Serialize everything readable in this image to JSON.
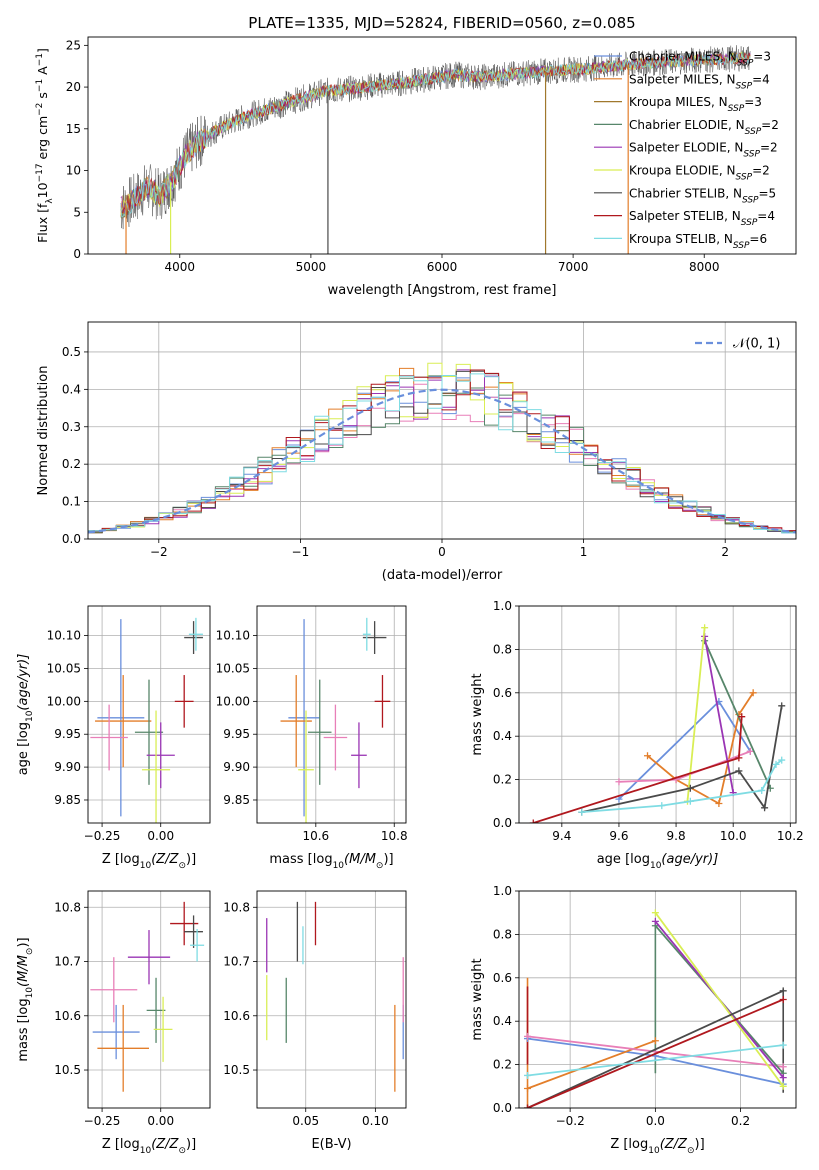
{
  "figure_title": "PLATE=1335, MJD=52824, FIBERID=0560, z=0.085",
  "colors": {
    "Chabrier MILES": "#6a8fdc",
    "Salpeter MILES": "#e37e2a",
    "Kroupa MILES": "#a0782d",
    "Chabrier ELODIE": "#57866a",
    "Salpeter ELODIE": "#9a35b4",
    "Kroupa ELODIE": "#d9ee55",
    "Chabrier STELIB": "#4a4a4a",
    "Salpeter STELIB": "#b0181e",
    "Kroupa STELIB": "#7fdce3",
    "pink": "#e87fb8",
    "normal": "#6a8fdc"
  },
  "chart_data": [
    {
      "id": "spectrum",
      "type": "line",
      "title": "PLATE=1335, MJD=52824, FIBERID=0560, z=0.085",
      "xlabel": "wavelength [Angstrom, rest frame]",
      "ylabel_main": "Flux [f",
      "ylabel_sub": "λ",
      "ylabel_rest": "10",
      "ylabel_exp1": "−17",
      "ylabel_unit": " erg cm",
      "ylabel_exp2": "−2",
      "ylabel_unit2": " s",
      "ylabel_exp3": "−1",
      "ylabel_unit3": " A",
      "ylabel_exp4": "−1",
      "ylabel_end": "]",
      "xlim": [
        3300,
        8700
      ],
      "ylim": [
        0,
        26
      ],
      "xticks": [
        4000,
        5000,
        6000,
        7000,
        8000
      ],
      "yticks": [
        0,
        5,
        10,
        15,
        20,
        25
      ],
      "legend_position": "right",
      "legend": [
        {
          "label": "Chabrier MILES, N",
          "sub": "SSP",
          "tail": "=3",
          "color": "#6a8fdc"
        },
        {
          "label": "Salpeter MILES, N",
          "sub": "SSP",
          "tail": "=4",
          "color": "#e37e2a"
        },
        {
          "label": "Kroupa MILES, N",
          "sub": "SSP",
          "tail": "=3",
          "color": "#a0782d"
        },
        {
          "label": "Chabrier ELODIE, N",
          "sub": "SSP",
          "tail": "=2",
          "color": "#57866a"
        },
        {
          "label": "Salpeter ELODIE, N",
          "sub": "SSP",
          "tail": "=2",
          "color": "#9a35b4"
        },
        {
          "label": "Kroupa ELODIE, N",
          "sub": "SSP",
          "tail": "=2",
          "color": "#d9ee55"
        },
        {
          "label": "Chabrier STELIB, N",
          "sub": "SSP",
          "tail": "=5",
          "color": "#4a4a4a"
        },
        {
          "label": "Salpeter STELIB, N",
          "sub": "SSP",
          "tail": "=4",
          "color": "#b0181e"
        },
        {
          "label": "Kroupa STELIB, N",
          "sub": "SSP",
          "tail": "=6",
          "color": "#7fdce3"
        }
      ],
      "trend_x": [
        3550,
        3650,
        3750,
        3850,
        3950,
        4050,
        4150,
        4300,
        4500,
        4700,
        4900,
        5100,
        5300,
        5500,
        5700,
        5900,
        6100,
        6300,
        6500,
        6700,
        6900,
        7100,
        7300,
        7500,
        7700,
        7900,
        8100,
        8300
      ],
      "trend_y": [
        5.5,
        6.5,
        8,
        7,
        9,
        12,
        13.5,
        15,
        16.5,
        17.5,
        18.5,
        19.5,
        19.8,
        20.2,
        20.5,
        21,
        21.5,
        21.2,
        21.5,
        21.8,
        22,
        22.2,
        22.5,
        22.8,
        23,
        23.2,
        23.3,
        23.5
      ],
      "data_range_x": [
        3550,
        8350
      ],
      "dips": [
        {
          "x": 3590,
          "y": 0.0,
          "color": "#e37e2a"
        },
        {
          "x": 3930,
          "y": 0.0,
          "color": "#d9ee55"
        },
        {
          "x": 5130,
          "y": 0.0,
          "color": "#4a4a4a"
        },
        {
          "x": 6790,
          "y": 0.0,
          "color": "#a0782d"
        },
        {
          "x": 7420,
          "y": 0.0,
          "color": "#e37e2a"
        }
      ]
    },
    {
      "id": "residuals",
      "type": "line",
      "xlabel": "(data-model)/error",
      "ylabel": "Normed distribution",
      "xlim": [
        -2.5,
        2.5
      ],
      "ylim": [
        0,
        0.58
      ],
      "xticks": [
        -2,
        -1,
        0,
        1,
        2
      ],
      "xticklabels": [
        "−2",
        "−1",
        "0",
        "1",
        "2"
      ],
      "yticks": [
        0.0,
        0.1,
        0.2,
        0.3,
        0.4,
        0.5
      ],
      "yticklabels": [
        "0.0",
        "0.1",
        "0.2",
        "0.3",
        "0.4",
        "0.5"
      ],
      "grid": true,
      "legend_position": "upper right",
      "legend_label": "𝒩(0, 1)",
      "normal_curve": {
        "mu": 0,
        "sigma": 1
      },
      "bin_width": 0.1
    },
    {
      "id": "age-vs-z",
      "type": "scatter",
      "xlabel": "Z [log",
      "ylabel": "age  [log",
      "xlim": [
        -0.31,
        0.21
      ],
      "ylim": [
        9.815,
        10.145
      ],
      "xticks": [
        -0.25,
        0.0
      ],
      "xticklabels": [
        "−0.25",
        "0.00"
      ],
      "yticks": [
        9.85,
        9.9,
        9.95,
        10.0,
        10.05,
        10.1
      ],
      "yticklabels": [
        "9.85",
        "9.90",
        "9.95",
        "10.00",
        "10.05",
        "10.10"
      ],
      "points": [
        {
          "x": -0.17,
          "y": 9.975,
          "xerr": 0.1,
          "yerr": 0.15,
          "color": "#6a8fdc"
        },
        {
          "x": -0.16,
          "y": 9.97,
          "xerr": 0.12,
          "yerr": 0.07,
          "color": "#e37e2a"
        },
        {
          "x": -0.22,
          "y": 9.945,
          "xerr": 0.08,
          "yerr": 0.05,
          "color": "#e87fb8"
        },
        {
          "x": -0.05,
          "y": 9.953,
          "xerr": 0.06,
          "yerr": 0.08,
          "color": "#57866a"
        },
        {
          "x": 0.0,
          "y": 9.918,
          "xerr": 0.06,
          "yerr": 0.05,
          "color": "#9a35b4"
        },
        {
          "x": -0.02,
          "y": 9.896,
          "xerr": 0.06,
          "yerr": 0.09,
          "color": "#d9ee55"
        },
        {
          "x": 0.1,
          "y": 10.0,
          "xerr": 0.04,
          "yerr": 0.04,
          "color": "#b0181e"
        },
        {
          "x": 0.14,
          "y": 10.097,
          "xerr": 0.04,
          "yerr": 0.025,
          "color": "#4a4a4a"
        },
        {
          "x": 0.15,
          "y": 10.102,
          "xerr": 0.03,
          "yerr": 0.025,
          "color": "#7fdce3"
        }
      ]
    },
    {
      "id": "age-vs-mass",
      "type": "scatter",
      "xlabel": "mass [log",
      "xlim": [
        10.45,
        10.83
      ],
      "ylim": [
        9.815,
        10.145
      ],
      "xticks": [
        10.6,
        10.8
      ],
      "xticklabels": [
        "10.6",
        "10.8"
      ],
      "yticks": [
        9.85,
        9.9,
        9.95,
        10.0,
        10.05,
        10.1
      ],
      "yticklabels": [
        "9.85",
        "9.90",
        "9.95",
        "10.00",
        "10.05",
        "10.10"
      ],
      "points": [
        {
          "x": 10.57,
          "y": 9.975,
          "xerr": 0.04,
          "yerr": 0.15,
          "color": "#6a8fdc"
        },
        {
          "x": 10.55,
          "y": 9.97,
          "xerr": 0.04,
          "yerr": 0.07,
          "color": "#e37e2a"
        },
        {
          "x": 10.65,
          "y": 9.945,
          "xerr": 0.03,
          "yerr": 0.05,
          "color": "#e87fb8"
        },
        {
          "x": 10.61,
          "y": 9.953,
          "xerr": 0.03,
          "yerr": 0.08,
          "color": "#57866a"
        },
        {
          "x": 10.71,
          "y": 9.918,
          "xerr": 0.02,
          "yerr": 0.05,
          "color": "#9a35b4"
        },
        {
          "x": 10.575,
          "y": 9.896,
          "xerr": 0.02,
          "yerr": 0.09,
          "color": "#d9ee55"
        },
        {
          "x": 10.77,
          "y": 10.0,
          "xerr": 0.02,
          "yerr": 0.04,
          "color": "#b0181e"
        },
        {
          "x": 10.75,
          "y": 10.097,
          "xerr": 0.03,
          "yerr": 0.025,
          "color": "#4a4a4a"
        },
        {
          "x": 10.73,
          "y": 10.102,
          "xerr": 0.01,
          "yerr": 0.025,
          "color": "#7fdce3"
        }
      ]
    },
    {
      "id": "mass-weight-vs-age",
      "type": "line",
      "xlabel": "age  [log",
      "ylabel": "mass weight",
      "xlim": [
        9.25,
        10.22
      ],
      "ylim": [
        0,
        1.0
      ],
      "xticks": [
        9.4,
        9.6,
        9.8,
        10.0,
        10.2
      ],
      "xticklabels": [
        "9.4",
        "9.6",
        "9.8",
        "10.0",
        "10.2"
      ],
      "yticks": [
        0.0,
        0.2,
        0.4,
        0.6,
        0.8,
        1.0
      ],
      "yticklabels": [
        "0.0",
        "0.2",
        "0.4",
        "0.6",
        "0.8",
        "1.0"
      ],
      "grid": true,
      "series": [
        {
          "color": "#6a8fdc",
          "x": [
            9.6,
            9.95,
            10.06
          ],
          "y": [
            0.11,
            0.56,
            0.33
          ]
        },
        {
          "color": "#e37e2a",
          "x": [
            9.7,
            9.8,
            9.95,
            10.02,
            10.07
          ],
          "y": [
            0.31,
            0.2,
            0.09,
            0.5,
            0.6
          ]
        },
        {
          "color": "#e87fb8",
          "x": [
            9.6,
            9.8,
            10.06
          ],
          "y": [
            0.19,
            0.2,
            0.33
          ]
        },
        {
          "color": "#57866a",
          "x": [
            9.9,
            10.13
          ],
          "y": [
            0.84,
            0.16
          ]
        },
        {
          "color": "#9a35b4",
          "x": [
            9.9,
            10.0
          ],
          "y": [
            0.86,
            0.14
          ]
        },
        {
          "color": "#d9ee55",
          "x": [
            9.84,
            9.9
          ],
          "y": [
            0.1,
            0.9
          ]
        },
        {
          "color": "#4a4a4a",
          "x": [
            9.47,
            9.85,
            10.02,
            10.11,
            10.17
          ],
          "y": [
            0.05,
            0.16,
            0.24,
            0.07,
            0.54
          ]
        },
        {
          "color": "#b0181e",
          "x": [
            9.3,
            10.02,
            10.03
          ],
          "y": [
            0.0,
            0.3,
            0.49
          ]
        },
        {
          "color": "#7fdce3",
          "x": [
            9.47,
            9.75,
            9.85,
            10.1,
            10.15,
            10.17
          ],
          "y": [
            0.05,
            0.08,
            0.1,
            0.15,
            0.27,
            0.29
          ]
        }
      ]
    },
    {
      "id": "mass-vs-z",
      "type": "scatter",
      "xlabel": "Z [log",
      "ylabel": "mass [log",
      "xlim": [
        -0.31,
        0.21
      ],
      "ylim": [
        10.43,
        10.83
      ],
      "xticks": [
        -0.25,
        0.0
      ],
      "xticklabels": [
        "−0.25",
        "0.00"
      ],
      "yticks": [
        10.5,
        10.6,
        10.7,
        10.8
      ],
      "yticklabels": [
        "10.5",
        "10.6",
        "10.7",
        "10.8"
      ],
      "points": [
        {
          "x": -0.19,
          "y": 10.57,
          "xerr": 0.1,
          "yerr": 0.05,
          "color": "#6a8fdc"
        },
        {
          "x": -0.16,
          "y": 10.54,
          "xerr": 0.11,
          "yerr": 0.08,
          "color": "#e37e2a"
        },
        {
          "x": -0.2,
          "y": 10.648,
          "xerr": 0.1,
          "yerr": 0.06,
          "color": "#e87fb8"
        },
        {
          "x": -0.02,
          "y": 10.61,
          "xerr": 0.04,
          "yerr": 0.06,
          "color": "#57866a"
        },
        {
          "x": -0.05,
          "y": 10.708,
          "xerr": 0.09,
          "yerr": 0.05,
          "color": "#9a35b4"
        },
        {
          "x": 0.01,
          "y": 10.575,
          "xerr": 0.04,
          "yerr": 0.06,
          "color": "#d9ee55"
        },
        {
          "x": 0.1,
          "y": 10.77,
          "xerr": 0.06,
          "yerr": 0.04,
          "color": "#b0181e"
        },
        {
          "x": 0.14,
          "y": 10.755,
          "xerr": 0.04,
          "yerr": 0.03,
          "color": "#4a4a4a"
        },
        {
          "x": 0.155,
          "y": 10.73,
          "xerr": 0.03,
          "yerr": 0.03,
          "color": "#7fdce3"
        }
      ]
    },
    {
      "id": "mass-vs-ebv",
      "type": "scatter",
      "xlabel": "E(B-V)",
      "xlim": [
        0.015,
        0.122
      ],
      "ylim": [
        10.43,
        10.83
      ],
      "xticks": [
        0.05,
        0.1
      ],
      "xticklabels": [
        "0.05",
        "0.10"
      ],
      "yticks": [
        10.5,
        10.6,
        10.7,
        10.8
      ],
      "yticklabels": [
        "10.5",
        "10.6",
        "10.7",
        "10.8"
      ],
      "points": [
        {
          "x": 0.12,
          "y": 10.57,
          "xerr": 0.0,
          "yerr": 0.05,
          "color": "#6a8fdc"
        },
        {
          "x": 0.114,
          "y": 10.54,
          "xerr": 0.0,
          "yerr": 0.08,
          "color": "#e37e2a"
        },
        {
          "x": 0.12,
          "y": 10.648,
          "xerr": 0.0,
          "yerr": 0.06,
          "color": "#e87fb8"
        },
        {
          "x": 0.036,
          "y": 10.61,
          "xerr": 0.0,
          "yerr": 0.06,
          "color": "#57866a"
        },
        {
          "x": 0.022,
          "y": 10.73,
          "xerr": 0.0,
          "yerr": 0.05,
          "color": "#9a35b4"
        },
        {
          "x": 0.022,
          "y": 10.615,
          "xerr": 0.0,
          "yerr": 0.06,
          "color": "#d9ee55"
        },
        {
          "x": 0.057,
          "y": 10.77,
          "xerr": 0.0,
          "yerr": 0.04,
          "color": "#b0181e"
        },
        {
          "x": 0.044,
          "y": 10.755,
          "xerr": 0.0,
          "yerr": 0.055,
          "color": "#4a4a4a"
        },
        {
          "x": 0.048,
          "y": 10.73,
          "xerr": 0.0,
          "yerr": 0.035,
          "color": "#7fdce3"
        }
      ]
    },
    {
      "id": "mass-weight-vs-z",
      "type": "line",
      "xlabel": "Z [log",
      "ylabel": "mass weight",
      "xlim": [
        -0.32,
        0.33
      ],
      "ylim": [
        0,
        1.0
      ],
      "xticks": [
        -0.2,
        0.0,
        0.2
      ],
      "xticklabels": [
        "−0.2",
        "0.0",
        "0.2"
      ],
      "yticks": [
        0.0,
        0.2,
        0.4,
        0.6,
        0.8,
        1.0
      ],
      "yticklabels": [
        "0.0",
        "0.2",
        "0.4",
        "0.6",
        "0.8",
        "1.0"
      ],
      "grid": true,
      "series": [
        {
          "color": "#6a8fdc",
          "x": [
            -0.3,
            0.0,
            0.3
          ],
          "y": [
            0.32,
            0.24,
            0.11
          ]
        },
        {
          "color": "#e37e2a",
          "x": [
            -0.3,
            0.0
          ],
          "y": [
            0.09,
            0.31
          ]
        },
        {
          "color": "#e87fb8",
          "x": [
            -0.3,
            0.3
          ],
          "y": [
            0.33,
            0.19
          ]
        },
        {
          "color": "#57866a",
          "x": [
            0.0,
            0.3
          ],
          "y": [
            0.84,
            0.16
          ]
        },
        {
          "color": "#9a35b4",
          "x": [
            0.0,
            0.3
          ],
          "y": [
            0.86,
            0.14
          ]
        },
        {
          "color": "#d9ee55",
          "x": [
            0.0,
            0.3
          ],
          "y": [
            0.9,
            0.1
          ]
        },
        {
          "color": "#4a4a4a",
          "x": [
            -0.3,
            0.3
          ],
          "y": [
            0.0,
            0.54
          ]
        },
        {
          "color": "#b0181e",
          "x": [
            -0.3,
            0.3
          ],
          "y": [
            0.0,
            0.5
          ]
        },
        {
          "color": "#7fdce3",
          "x": [
            -0.3,
            0.3
          ],
          "y": [
            0.15,
            0.29
          ]
        }
      ],
      "verticals": [
        {
          "x": -0.3,
          "y0": 0.0,
          "y1": 0.6,
          "color": "#e37e2a"
        },
        {
          "x": -0.3,
          "y0": 0.2,
          "y1": 0.56,
          "color": "#b0181e"
        },
        {
          "x": 0.0,
          "y0": 0.16,
          "y1": 0.86,
          "color": "#57866a"
        },
        {
          "x": 0.3,
          "y0": 0.07,
          "y1": 0.55,
          "color": "#4a4a4a"
        }
      ]
    }
  ],
  "math": {
    "log_sub": "10",
    "z_paren": "(Z/Z",
    "sun": "⊙",
    "close": ")]",
    "age_paren": "(age/yr)]",
    "mass_paren": "(M/M",
    "age_label_main": "age  [log",
    "mass_label_main": "mass [log",
    "z_label_main": "Z [log"
  }
}
